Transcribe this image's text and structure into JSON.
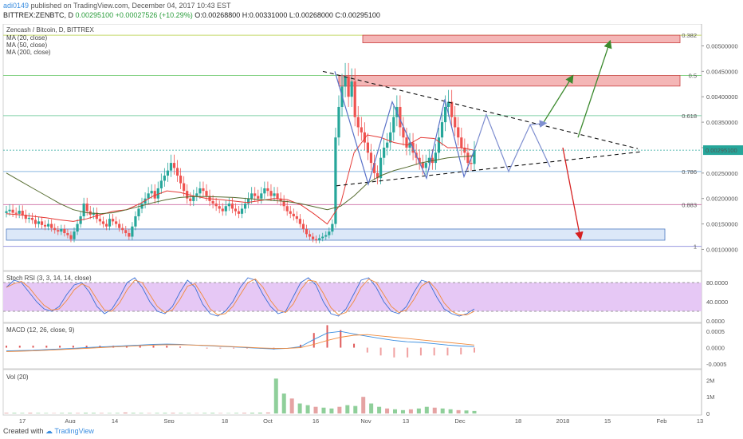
{
  "header": {
    "user": "adi0149",
    "published": "published on TradingView.com, December 04, 2017 10:43 EST",
    "symbol": "BITTREX:ZENBTC, D",
    "last": "0.00295100",
    "change": "+0.00027526 (+10.29%)",
    "ohlc": "O:0.00268800 H:0.00331000 L:0.00268000 C:0.00295100"
  },
  "footer": {
    "created": "Created with",
    "brand": "TradingView"
  },
  "colors": {
    "up": "#26a69a",
    "down": "#ef5350",
    "ma20": "#e53935",
    "ma50": "#556b2f",
    "ma200": "#999999",
    "fib": "#7fd07f",
    "zone_red": "#f4b6b6",
    "zone_blue": "#dce8f8",
    "rsi_band": "#e6c8f5"
  },
  "chart_data": [
    {
      "type": "candlestick",
      "title": "Zencash / Bitcoin, D, BITTREX",
      "legend": [
        "MA (20, close)",
        "MA (50, close)",
        "MA (200, close)"
      ],
      "x_ticks": [
        "17",
        "Aug",
        "14",
        "Sep",
        "18",
        "Oct",
        "16",
        "Nov",
        "13",
        "Dec",
        "18",
        "2018",
        "15",
        "Feb",
        "13"
      ],
      "y_ticks": [
        "0.00500000",
        "0.00450000",
        "0.00400000",
        "0.00350000",
        "0.00300000",
        "0.00250000",
        "0.00200000",
        "0.00150000",
        "0.00100000"
      ],
      "ylim": [
        0.00085,
        0.0054
      ],
      "last_price": "0.00295100",
      "fib_levels": [
        {
          "label": "0.382",
          "value": 0.00521
        },
        {
          "label": "0.5",
          "value": 0.00442
        },
        {
          "label": "0.618",
          "value": 0.00363
        },
        {
          "label": "0.786",
          "value": 0.00253
        },
        {
          "label": "0.883",
          "value": 0.00188
        },
        {
          "label": "1",
          "value": 0.00106
        }
      ],
      "close_series": [
        0.00175,
        0.00178,
        0.00172,
        0.0017,
        0.00176,
        0.00168,
        0.0016,
        0.00162,
        0.00158,
        0.0015,
        0.00155,
        0.00148,
        0.00145,
        0.0015,
        0.00142,
        0.00138,
        0.00135,
        0.0014,
        0.00132,
        0.00128,
        0.0012,
        0.00135,
        0.0015,
        0.00165,
        0.0019,
        0.00175,
        0.00168,
        0.00172,
        0.0016,
        0.00155,
        0.0015,
        0.00145,
        0.0016,
        0.00155,
        0.0015,
        0.00142,
        0.00138,
        0.00132,
        0.00125,
        0.00145,
        0.00165,
        0.0018,
        0.0019,
        0.002,
        0.0021,
        0.00215,
        0.002,
        0.0022,
        0.00235,
        0.00245,
        0.00255,
        0.0027,
        0.0026,
        0.00245,
        0.0023,
        0.00215,
        0.002,
        0.00195,
        0.00205,
        0.0021,
        0.0022,
        0.00215,
        0.00205,
        0.00195,
        0.0019,
        0.00185,
        0.0018,
        0.00175,
        0.00185,
        0.0019,
        0.0018,
        0.00175,
        0.0017,
        0.0018,
        0.0019,
        0.002,
        0.0021,
        0.00205,
        0.002,
        0.0021,
        0.0022,
        0.00215,
        0.00205,
        0.0021,
        0.002,
        0.00195,
        0.00185,
        0.00175,
        0.0017,
        0.00165,
        0.0016,
        0.0015,
        0.0014,
        0.0013,
        0.00125,
        0.0012,
        0.00118,
        0.00122,
        0.00125,
        0.00128,
        0.00135,
        0.0015,
        0.0032,
        0.0038,
        0.0042,
        0.0044,
        0.004,
        0.0043,
        0.0036,
        0.0034,
        0.0033,
        0.0031,
        0.0029,
        0.0027,
        0.0025,
        0.0024,
        0.0028,
        0.003,
        0.0031,
        0.0033,
        0.0036,
        0.0038,
        0.0034,
        0.0032,
        0.003,
        0.0031,
        0.0029,
        0.0028,
        0.0027,
        0.0026,
        0.0027,
        0.0028,
        0.0027,
        0.0029,
        0.0032,
        0.0035,
        0.0038,
        0.0039,
        0.0036,
        0.0034,
        0.0032,
        0.003,
        0.0029,
        0.0027,
        0.00268,
        0.00295
      ],
      "ma20": [
        0.0017,
        0.00168,
        0.00165,
        0.00162,
        0.00158,
        0.00155,
        0.0016,
        0.00168,
        0.00175,
        0.00178,
        0.0019,
        0.00205,
        0.00215,
        0.00212,
        0.00205,
        0.002,
        0.00198,
        0.00195,
        0.00192,
        0.00196,
        0.002,
        0.00198,
        0.00188,
        0.0017,
        0.0015,
        0.0019,
        0.0029,
        0.00325,
        0.0032,
        0.0031,
        0.00305,
        0.0032,
        0.00318,
        0.003,
        0.003,
        0.00295
      ],
      "ma50": [
        0.0025,
        0.00235,
        0.0022,
        0.00205,
        0.0019,
        0.00178,
        0.00172,
        0.0017,
        0.00172,
        0.00178,
        0.00185,
        0.00192,
        0.00198,
        0.00202,
        0.00204,
        0.00204,
        0.00203,
        0.00202,
        0.002,
        0.00198,
        0.00196,
        0.00194,
        0.0019,
        0.00184,
        0.00178,
        0.00185,
        0.00205,
        0.0023,
        0.00245,
        0.00255,
        0.00262,
        0.0027,
        0.00275,
        0.0028,
        0.00282,
        0.00284
      ],
      "annotations": {
        "triangle_upper": "descending resistance",
        "triangle_lower": "ascending support",
        "projection": "zigzag into apex, breakout up or down"
      }
    },
    {
      "type": "line",
      "title": "Stoch RSI (3, 3, 14, 14, close)",
      "y_ticks": [
        "80.0000",
        "40.0000",
        "0.0000"
      ],
      "ylim": [
        0,
        100
      ],
      "bands": [
        20,
        80
      ],
      "k": [
        70,
        85,
        80,
        60,
        40,
        25,
        20,
        30,
        55,
        75,
        80,
        60,
        30,
        15,
        25,
        50,
        80,
        90,
        70,
        40,
        20,
        15,
        30,
        60,
        85,
        70,
        35,
        15,
        10,
        20,
        40,
        70,
        90,
        85,
        55,
        30,
        15,
        20,
        50,
        80,
        90,
        75,
        40,
        15,
        10,
        25,
        55,
        85,
        90,
        70,
        40,
        20,
        15,
        30,
        60,
        85,
        80,
        50,
        25,
        15,
        10,
        15,
        25
      ]
    },
    {
      "type": "line",
      "title": "MACD (12, 26, close, 9)",
      "y_ticks": [
        "0.0005",
        "0.0000",
        "-0.0005"
      ],
      "ylim": [
        -0.0006,
        0.0007
      ],
      "macd": [
        -0.0001,
        -9e-05,
        -8e-05,
        -6e-05,
        -4e-05,
        -2e-05,
        0.0,
        2e-05,
        4e-05,
        6e-05,
        8e-05,
        0.0001,
        0.00011,
        0.0001,
        8e-05,
        6e-05,
        4e-05,
        2e-05,
        0.0,
        -2e-05,
        -4e-05,
        -2e-05,
        3e-05,
        0.00025,
        0.00045,
        0.0005,
        0.00042,
        0.00035,
        0.00028,
        0.00022,
        0.00018,
        0.00016,
        0.00012,
        8e-05,
        5e-05,
        3e-05
      ],
      "signal": [
        -0.00012,
        -0.00011,
        -0.0001,
        -8e-05,
        -6e-05,
        -4e-05,
        -2e-05,
        0.0,
        2e-05,
        4e-05,
        6e-05,
        8e-05,
        9e-05,
        9e-05,
        8e-05,
        7e-05,
        5e-05,
        3e-05,
        1e-05,
        -1e-05,
        -2e-05,
        -2e-05,
        0.0,
        0.0001,
        0.00022,
        0.00032,
        0.00038,
        0.0004,
        0.00036,
        0.00032,
        0.00028,
        0.00024,
        0.0002,
        0.00016,
        0.00012,
        8e-05
      ]
    },
    {
      "type": "bar",
      "title": "Vol (20)",
      "y_ticks": [
        "2M",
        "1M",
        "0"
      ],
      "ylim": [
        0,
        2500000
      ],
      "values": [
        40000,
        35000,
        30000,
        45000,
        30000,
        25000,
        20000,
        30000,
        35000,
        30000,
        40000,
        35000,
        30000,
        25000,
        30000,
        60000,
        35000,
        30000,
        25000,
        30000,
        35000,
        40000,
        30000,
        25000,
        20000,
        30000,
        35000,
        25000,
        20000,
        30000,
        40000,
        45000,
        50000,
        60000,
        2100000,
        1200000,
        900000,
        600000,
        500000,
        400000,
        350000,
        300000,
        400000,
        500000,
        450000,
        1000000,
        600000,
        400000,
        300000,
        250000,
        200000,
        250000,
        300000,
        400000,
        350000,
        300000,
        250000,
        200000,
        180000,
        150000
      ]
    }
  ]
}
